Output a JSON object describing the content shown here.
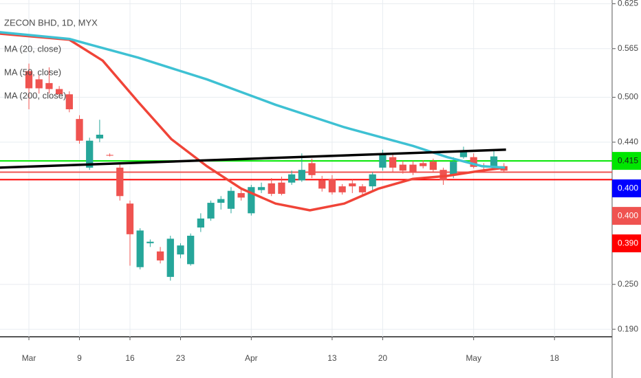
{
  "chart_data": {
    "type": "candlestick",
    "title": "ZECON BHD, 1D, MYX",
    "xlim": [
      -2.86,
      57.7
    ],
    "ylim": [
      0.18,
      0.63
    ],
    "xticks": [
      {
        "value": 0,
        "label": "Mar"
      },
      {
        "value": 5,
        "label": "9"
      },
      {
        "value": 10,
        "label": "16"
      },
      {
        "value": 15,
        "label": "23"
      },
      {
        "value": 22,
        "label": "Apr"
      },
      {
        "value": 30,
        "label": "13"
      },
      {
        "value": 35,
        "label": "20"
      },
      {
        "value": 44,
        "label": "May"
      },
      {
        "value": 52,
        "label": "18"
      }
    ],
    "yticks": [
      0.625,
      0.565,
      {
        "value": 0.5,
        "label": "0.500"
      },
      {
        "value": 0.44,
        "label": "0.440"
      },
      {
        "value": 0.25,
        "label": "0.250"
      },
      {
        "value": 0.19,
        "label": "0.190"
      }
    ],
    "grid": true,
    "up_color": "#26a69a",
    "down_color": "#ef5350",
    "x": [
      0,
      1,
      2,
      3,
      4,
      5,
      6,
      7,
      8,
      9,
      10,
      11,
      12,
      13,
      14,
      15,
      16,
      17,
      18,
      19,
      20,
      21,
      22,
      23,
      24,
      25,
      26,
      27,
      28,
      29,
      30,
      31,
      32,
      33,
      34,
      35,
      36,
      37,
      38,
      39,
      40,
      41,
      42,
      43,
      44,
      45,
      46,
      47
    ],
    "open": [
      0.535,
      0.524,
      0.519,
      0.511,
      0.504,
      0.471,
      0.406,
      0.445,
      0.423,
      0.406,
      0.358,
      0.273,
      0.305,
      0.294,
      0.26,
      0.29,
      0.277,
      0.326,
      0.338,
      0.359,
      0.351,
      0.372,
      0.345,
      0.376,
      0.385,
      0.386,
      0.386,
      0.389,
      0.412,
      0.389,
      0.391,
      0.381,
      0.385,
      0.381,
      0.381,
      0.406,
      0.42,
      0.41,
      0.41,
      0.412,
      0.414,
      0.403,
      0.397,
      0.42,
      0.42,
      0.408,
      0.406,
      0.408
    ],
    "high": [
      0.545,
      0.53,
      0.54,
      0.515,
      0.508,
      0.476,
      0.446,
      0.47,
      0.425,
      0.41,
      0.362,
      0.325,
      0.31,
      0.3,
      0.315,
      0.305,
      0.318,
      0.345,
      0.362,
      0.368,
      0.38,
      0.378,
      0.383,
      0.386,
      0.392,
      0.394,
      0.402,
      0.425,
      0.418,
      0.395,
      0.396,
      0.384,
      0.39,
      0.384,
      0.4,
      0.43,
      0.425,
      0.415,
      0.415,
      0.416,
      0.418,
      0.406,
      0.42,
      0.434,
      0.425,
      0.412,
      0.428,
      0.412
    ],
    "low": [
      0.484,
      0.505,
      0.505,
      0.5,
      0.48,
      0.438,
      0.403,
      0.44,
      0.421,
      0.362,
      0.275,
      0.27,
      0.3,
      0.278,
      0.255,
      0.285,
      0.275,
      0.32,
      0.335,
      0.35,
      0.345,
      0.362,
      0.342,
      0.372,
      0.368,
      0.369,
      0.383,
      0.387,
      0.392,
      0.374,
      0.37,
      0.37,
      0.372,
      0.37,
      0.376,
      0.402,
      0.4,
      0.398,
      0.396,
      0.405,
      0.4,
      0.383,
      0.392,
      0.418,
      0.405,
      0.402,
      0.404,
      0.4
    ],
    "close": [
      0.512,
      0.512,
      0.511,
      0.504,
      0.484,
      0.442,
      0.442,
      0.45,
      0.422,
      0.368,
      0.317,
      0.322,
      0.307,
      0.282,
      0.311,
      0.302,
      0.315,
      0.338,
      0.359,
      0.364,
      0.375,
      0.366,
      0.38,
      0.38,
      0.371,
      0.371,
      0.397,
      0.403,
      0.396,
      0.378,
      0.373,
      0.373,
      0.381,
      0.373,
      0.397,
      0.423,
      0.406,
      0.402,
      0.399,
      0.408,
      0.403,
      0.389,
      0.414,
      0.428,
      0.407,
      0.407,
      0.421,
      0.402
    ],
    "series": [
      {
        "name": "MA (20, close)",
        "color": "#f04438",
        "x": [
          -2.9,
          4,
          7.3,
          10.8,
          14.1,
          17.6,
          21,
          24.4,
          27.8,
          31.2,
          34.6,
          38,
          41.4,
          44.8,
          47.1
        ],
        "values": [
          0.585,
          0.577,
          0.549,
          0.494,
          0.444,
          0.408,
          0.378,
          0.358,
          0.349,
          0.358,
          0.378,
          0.391,
          0.395,
          0.402,
          0.406
        ]
      },
      {
        "name": "MA (50, close)",
        "color": "#3ec1d3",
        "x": [
          -2.9,
          4,
          10.8,
          17.6,
          24.4,
          31.2,
          38,
          41.4,
          44.8,
          47.1
        ],
        "values": [
          0.587,
          0.578,
          0.553,
          0.524,
          0.49,
          0.46,
          0.435,
          0.42,
          0.408,
          0.406
        ]
      },
      {
        "name": "MA (200, close)",
        "color": "#000000",
        "x": [
          -2.9,
          47.2
        ],
        "values": [
          0.406,
          0.43
        ]
      }
    ],
    "price_lines": [
      {
        "value": 0.415,
        "label": "0.415",
        "color": "#00e600"
      },
      {
        "value": 0.4,
        "label": "0.400",
        "color": "#0000ff"
      },
      {
        "value": 0.4,
        "label": "0.400",
        "color": "#ef5350"
      },
      {
        "value": 0.39,
        "label": "0.390",
        "color": "#ff0000"
      }
    ]
  }
}
